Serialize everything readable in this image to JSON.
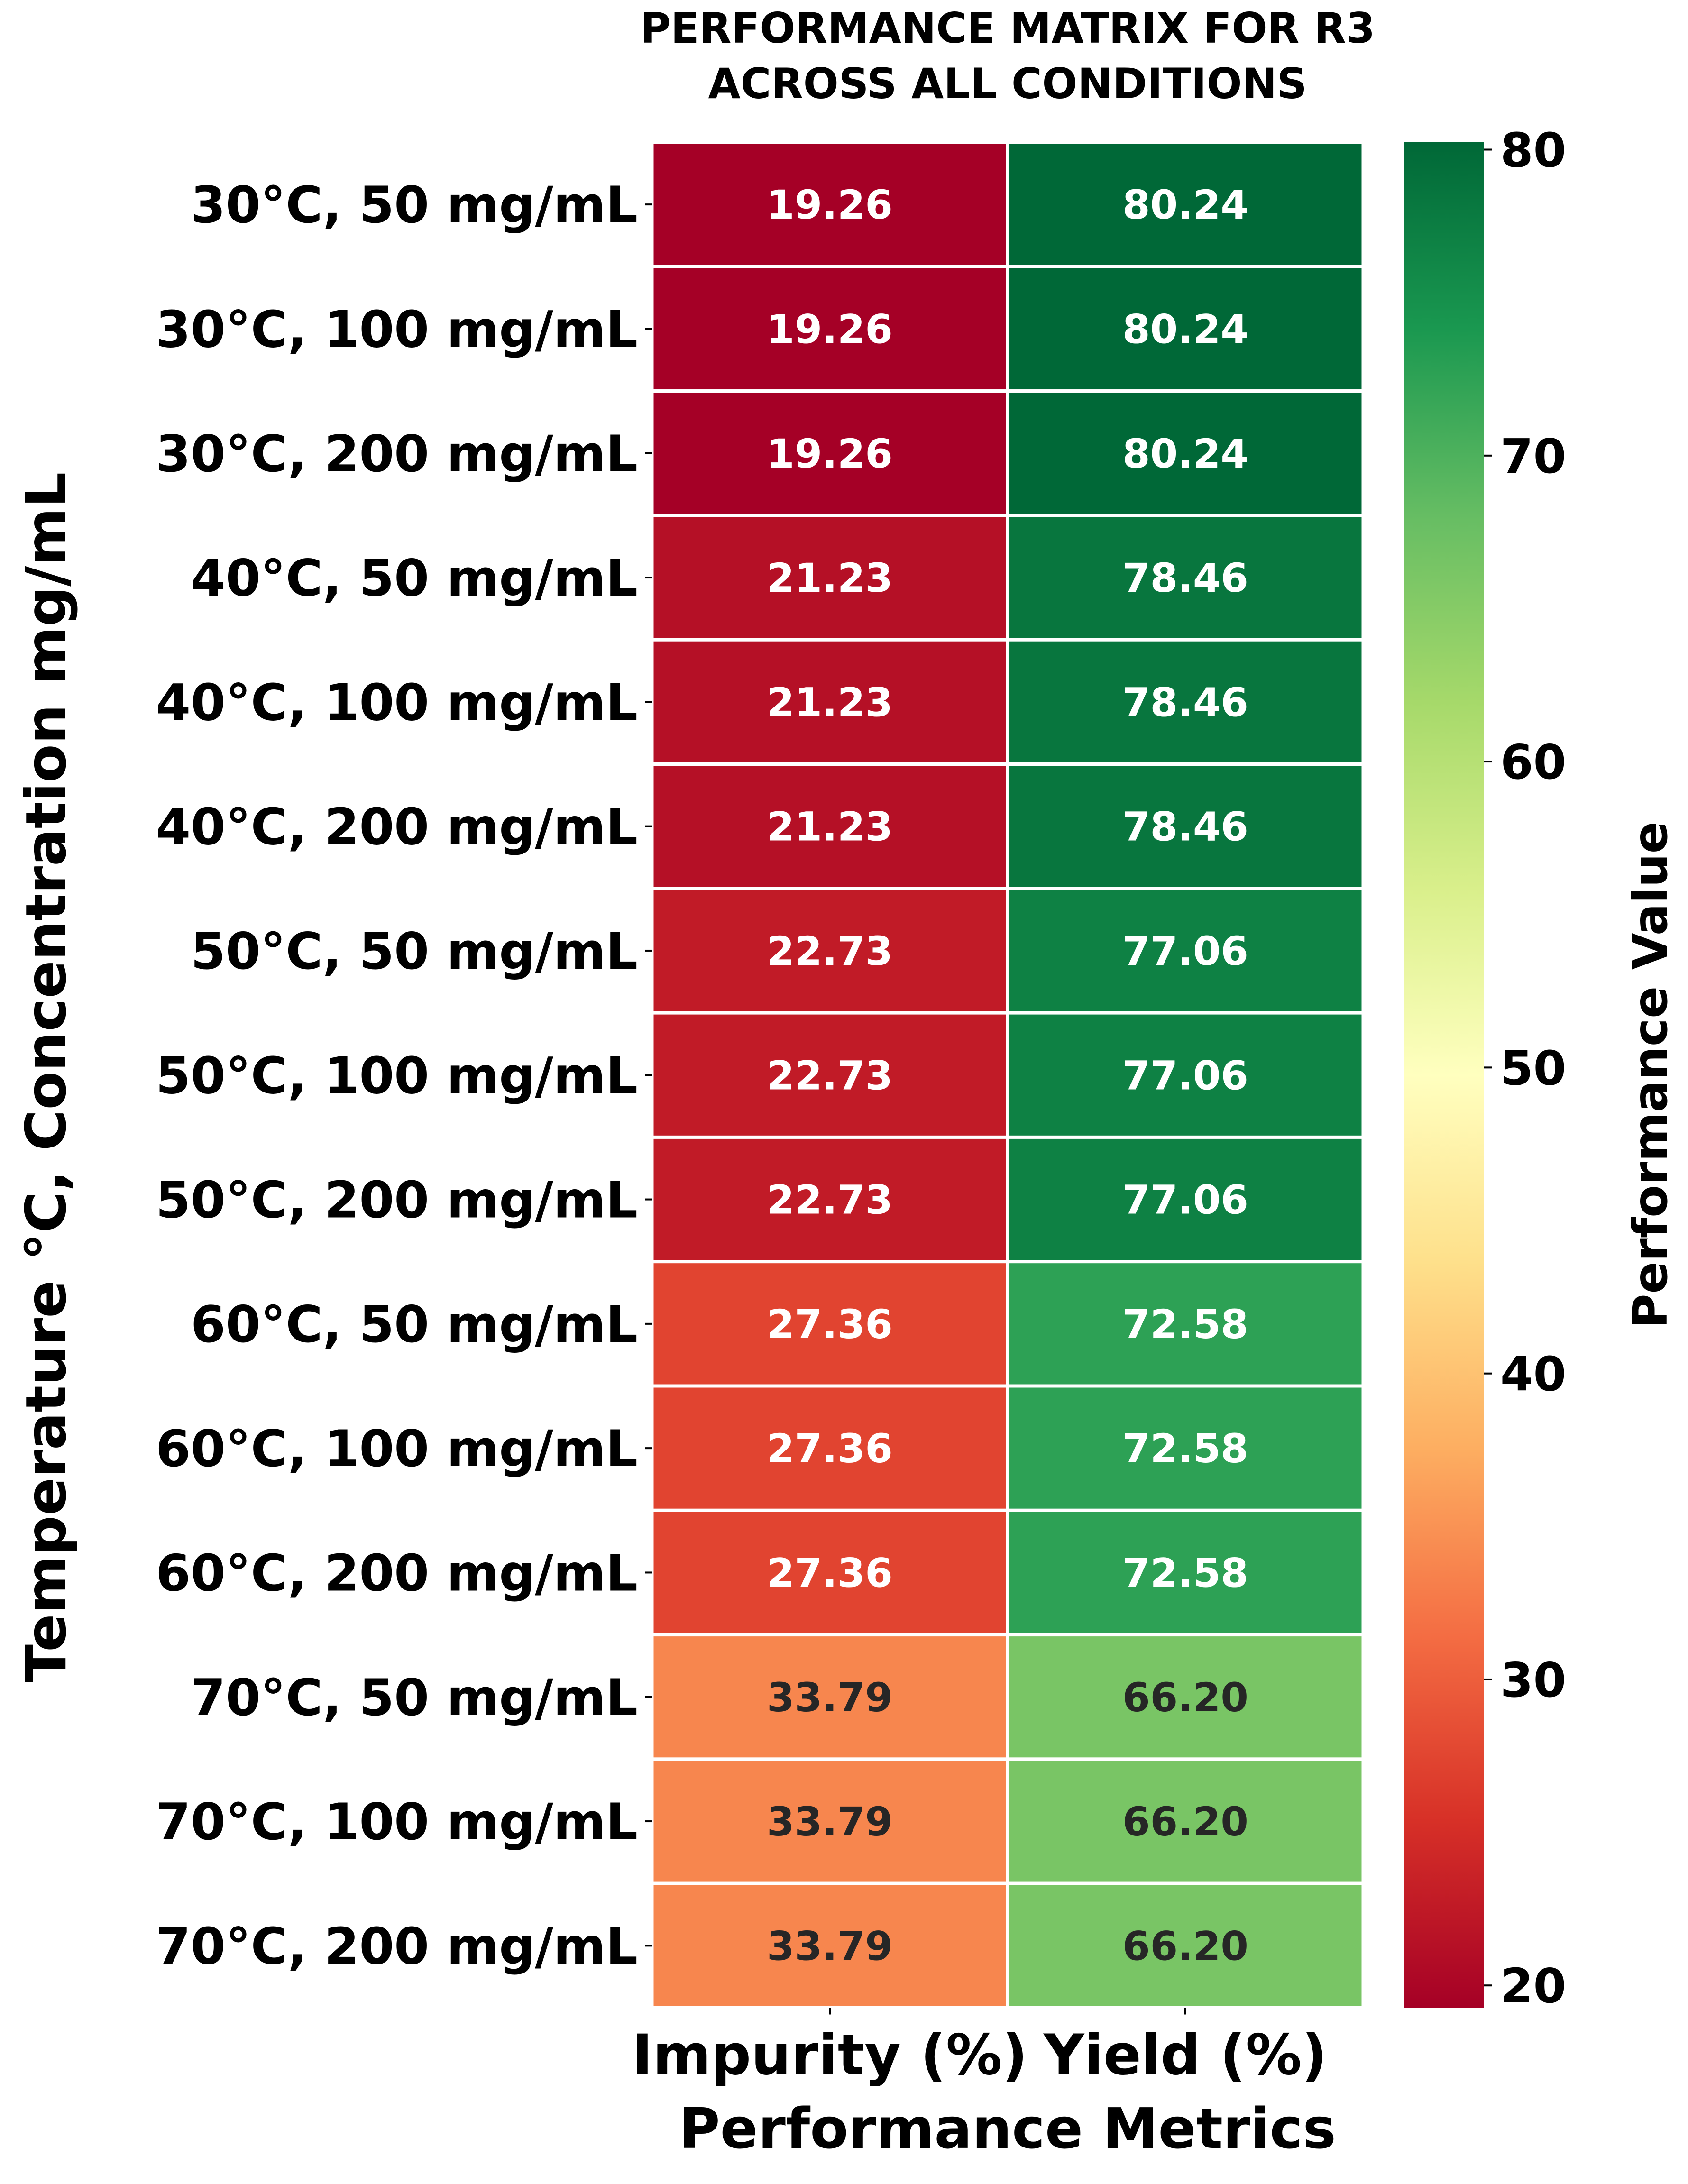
{
  "chart_data": {
    "type": "heatmap",
    "title_lines": [
      "PERFORMANCE MATRIX FOR R3",
      "ACROSS ALL CONDITIONS"
    ],
    "xlabel": "Performance Metrics",
    "ylabel": "Temperature °C, Concentration mg/mL",
    "columns": [
      "Impurity (%)",
      "Yield (%)"
    ],
    "rows": [
      "30°C, 50 mg/mL",
      "30°C, 100 mg/mL",
      "30°C, 200 mg/mL",
      "40°C, 50 mg/mL",
      "40°C, 100 mg/mL",
      "40°C, 200 mg/mL",
      "50°C, 50 mg/mL",
      "50°C, 100 mg/mL",
      "50°C, 200 mg/mL",
      "60°C, 50 mg/mL",
      "60°C, 100 mg/mL",
      "60°C, 200 mg/mL",
      "70°C, 50 mg/mL",
      "70°C, 100 mg/mL",
      "70°C, 200 mg/mL"
    ],
    "values": [
      [
        19.26,
        80.24
      ],
      [
        19.26,
        80.24
      ],
      [
        19.26,
        80.24
      ],
      [
        21.23,
        78.46
      ],
      [
        21.23,
        78.46
      ],
      [
        21.23,
        78.46
      ],
      [
        22.73,
        77.06
      ],
      [
        22.73,
        77.06
      ],
      [
        22.73,
        77.06
      ],
      [
        27.36,
        72.58
      ],
      [
        27.36,
        72.58
      ],
      [
        27.36,
        72.58
      ],
      [
        33.79,
        66.2
      ],
      [
        33.79,
        66.2
      ],
      [
        33.79,
        66.2
      ]
    ],
    "value_labels": [
      [
        "19.26",
        "80.24"
      ],
      [
        "19.26",
        "80.24"
      ],
      [
        "19.26",
        "80.24"
      ],
      [
        "21.23",
        "78.46"
      ],
      [
        "21.23",
        "78.46"
      ],
      [
        "21.23",
        "78.46"
      ],
      [
        "22.73",
        "77.06"
      ],
      [
        "22.73",
        "77.06"
      ],
      [
        "22.73",
        "77.06"
      ],
      [
        "27.36",
        "72.58"
      ],
      [
        "27.36",
        "72.58"
      ],
      [
        "27.36",
        "72.58"
      ],
      [
        "33.79",
        "66.20"
      ],
      [
        "33.79",
        "66.20"
      ],
      [
        "33.79",
        "66.20"
      ]
    ],
    "colorbar": {
      "label": "Performance Value",
      "colormap": "RdYlGn",
      "vmin": 19.26,
      "vmax": 80.24,
      "ticks": [
        20,
        30,
        40,
        50,
        60,
        70,
        80
      ]
    },
    "annotation_colors": {
      "light": "#ffffff",
      "dark": "#262626"
    },
    "grid_line_color": "#ffffff"
  }
}
